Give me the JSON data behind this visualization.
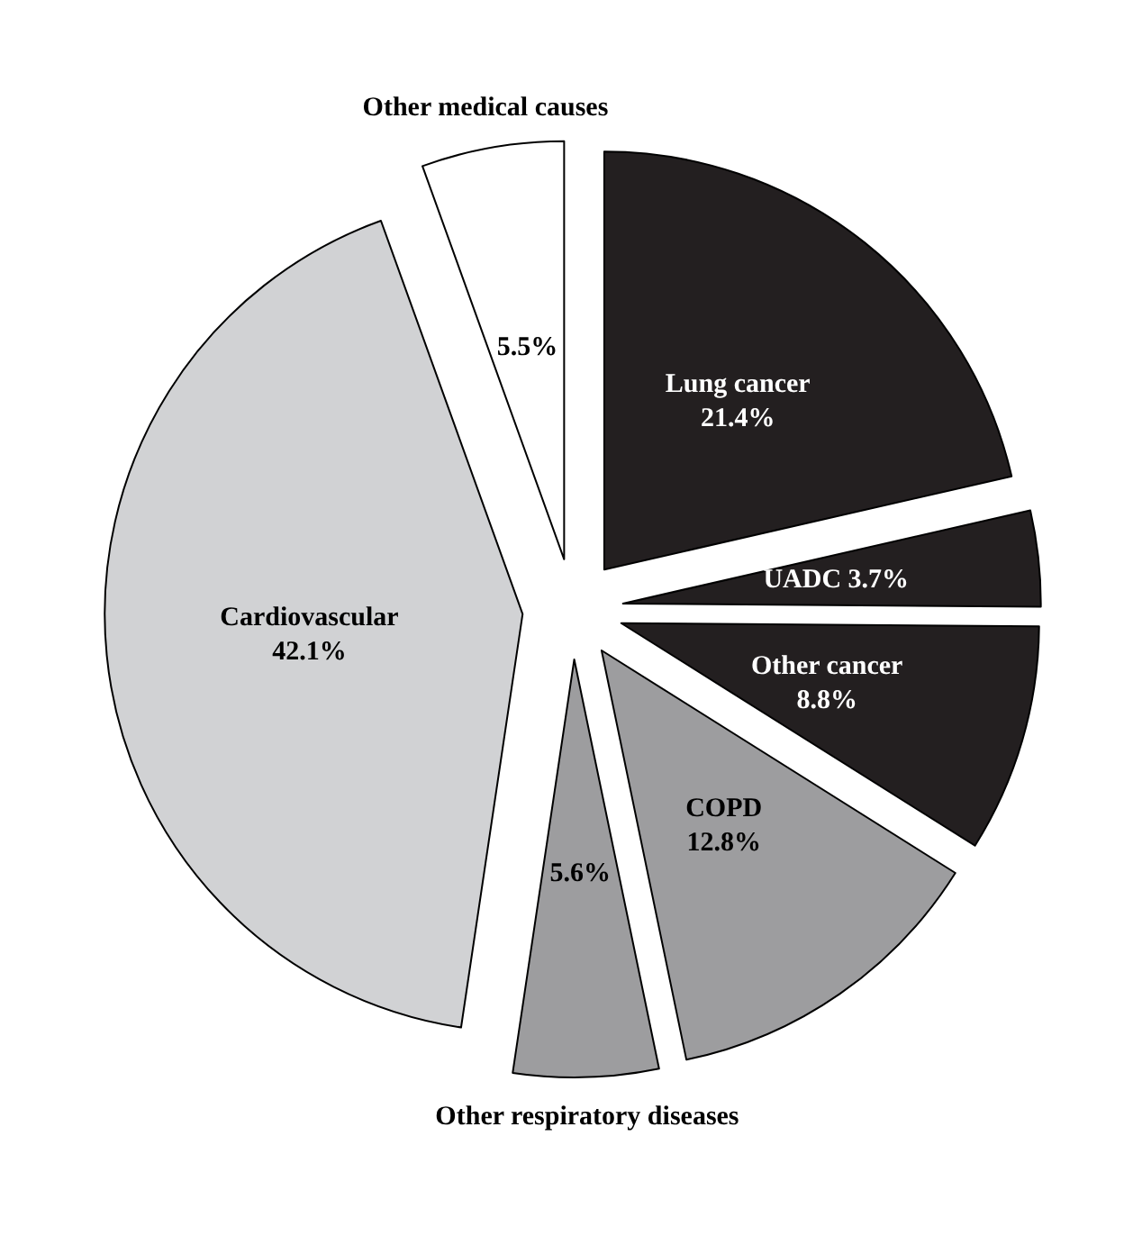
{
  "chart_data": {
    "type": "pie",
    "categories": [
      "Lung cancer",
      "UADC",
      "Other cancer",
      "COPD",
      "Other respiratory diseases",
      "Cardiovascular",
      "Other medical causes"
    ],
    "values": [
      21.4,
      3.7,
      8.8,
      12.8,
      5.6,
      42.1,
      5.5
    ],
    "colors": [
      "#231f20",
      "#231f20",
      "#231f20",
      "#9d9d9f",
      "#9d9d9f",
      "#d1d2d4",
      "#ffffff"
    ],
    "value_labels": [
      "21.4%",
      "3.7%",
      "8.8%",
      "12.8%",
      "5.6%",
      "42.1%",
      "5.5%"
    ]
  }
}
